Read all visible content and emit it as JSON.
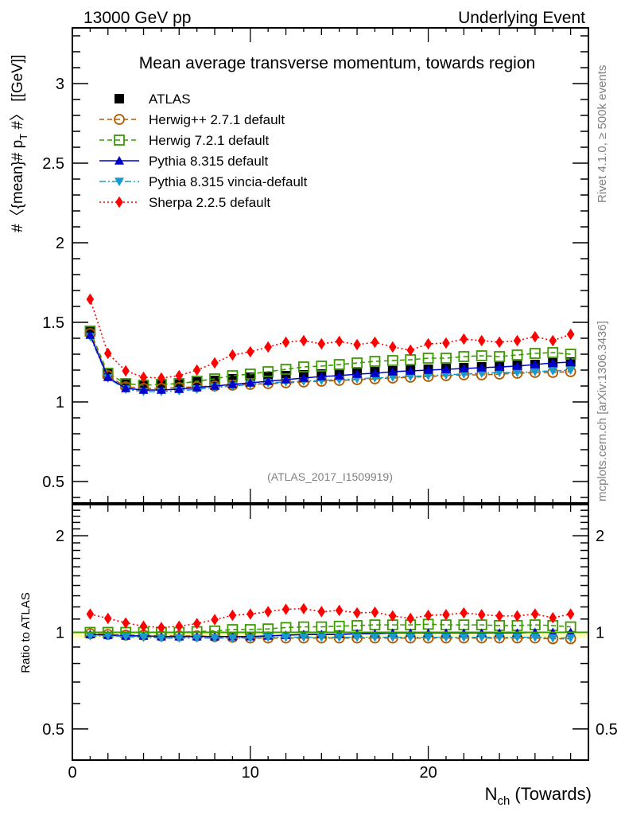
{
  "header": {
    "left": "13000 GeV pp",
    "right": "Underlying Event"
  },
  "side_labels": {
    "rivet": "Rivet 4.1.0, ≥ 500k events",
    "mcplots": "mcplots.cern.ch [arXiv:1306.3436]"
  },
  "chart_data": [
    {
      "type": "line",
      "panel": "main",
      "title": "Mean average transverse momentum, towards region",
      "analysis_label": "(ATLAS_2017_I1509919)",
      "xlabel_main": "N",
      "xlabel_sub": "ch",
      "xlabel_rest": " (Towards)",
      "ylabel": "#〈{mean}# p",
      "ylabel_sub": "T",
      "ylabel_rest": " #〉 [[GeV]]",
      "xlim": [
        0,
        29
      ],
      "ylim": [
        0.365,
        3.35
      ],
      "yticks": [
        0.5,
        1,
        1.5,
        2,
        2.5,
        3
      ],
      "ytick_labels": [
        "0.5",
        "1",
        "1.5",
        "2",
        "2.5",
        "3"
      ],
      "xticks": [
        0,
        10,
        20
      ],
      "xtick_labels": [
        "0",
        "10",
        "20"
      ],
      "legend_position": "top-left",
      "x": [
        1,
        2,
        3,
        4,
        5,
        6,
        7,
        8,
        9,
        10,
        11,
        12,
        13,
        14,
        15,
        16,
        17,
        18,
        19,
        20,
        21,
        22,
        23,
        24,
        25,
        26,
        27,
        28
      ],
      "series": [
        {
          "name": "ATLAS",
          "color": "#000000",
          "marker": "square-filled",
          "line": "none",
          "values": [
            1.445,
            1.18,
            1.115,
            1.105,
            1.11,
            1.115,
            1.125,
            1.135,
            1.145,
            1.155,
            1.16,
            1.165,
            1.17,
            1.175,
            1.18,
            1.185,
            1.19,
            1.195,
            1.2,
            1.205,
            1.21,
            1.215,
            1.22,
            1.225,
            1.23,
            1.235,
            1.245,
            1.25
          ]
        },
        {
          "name": "Herwig++ 2.7.1 default",
          "color": "#b35900",
          "marker": "circle-open",
          "line": "dashed",
          "values": [
            1.43,
            1.165,
            1.095,
            1.085,
            1.085,
            1.09,
            1.095,
            1.1,
            1.105,
            1.11,
            1.115,
            1.12,
            1.125,
            1.13,
            1.135,
            1.14,
            1.145,
            1.15,
            1.155,
            1.16,
            1.165,
            1.17,
            1.17,
            1.175,
            1.18,
            1.185,
            1.185,
            1.19
          ]
        },
        {
          "name": "Herwig 7.2.1 default",
          "color": "#3a9a00",
          "marker": "square-open",
          "line": "dashed",
          "values": [
            1.445,
            1.18,
            1.115,
            1.105,
            1.11,
            1.115,
            1.13,
            1.145,
            1.165,
            1.175,
            1.19,
            1.205,
            1.22,
            1.225,
            1.235,
            1.245,
            1.255,
            1.26,
            1.265,
            1.275,
            1.275,
            1.285,
            1.29,
            1.285,
            1.295,
            1.305,
            1.31,
            1.3
          ]
        },
        {
          "name": "Pythia 8.315 default",
          "color": "#0000cc",
          "marker": "triangle-up",
          "line": "solid",
          "values": [
            1.42,
            1.155,
            1.085,
            1.075,
            1.075,
            1.08,
            1.09,
            1.1,
            1.11,
            1.12,
            1.13,
            1.14,
            1.15,
            1.16,
            1.165,
            1.175,
            1.18,
            1.19,
            1.195,
            1.2,
            1.205,
            1.21,
            1.215,
            1.22,
            1.225,
            1.235,
            1.245,
            1.25
          ]
        },
        {
          "name": "Pythia 8.315 vincia-default",
          "color": "#1a9acc",
          "marker": "triangle-down",
          "line": "dash-dot",
          "values": [
            1.41,
            1.15,
            1.08,
            1.065,
            1.065,
            1.07,
            1.08,
            1.09,
            1.1,
            1.11,
            1.12,
            1.125,
            1.13,
            1.135,
            1.14,
            1.145,
            1.15,
            1.155,
            1.16,
            1.165,
            1.17,
            1.175,
            1.18,
            1.185,
            1.185,
            1.19,
            1.195,
            1.2
          ]
        },
        {
          "name": "Sherpa 2.2.5 default",
          "color": "#ff0000",
          "marker": "diamond-filled",
          "line": "dotted",
          "values": [
            1.645,
            1.305,
            1.195,
            1.155,
            1.15,
            1.165,
            1.2,
            1.245,
            1.295,
            1.315,
            1.345,
            1.375,
            1.385,
            1.365,
            1.38,
            1.36,
            1.375,
            1.345,
            1.325,
            1.365,
            1.37,
            1.395,
            1.385,
            1.375,
            1.385,
            1.41,
            1.385,
            1.425
          ]
        }
      ]
    },
    {
      "type": "line",
      "panel": "ratio",
      "ylabel": "Ratio to ATLAS",
      "yscale": "log",
      "ylim": [
        0.4,
        2.5
      ],
      "yticks": [
        0.5,
        1,
        2
      ],
      "ytick_labels": [
        "0.5",
        "1",
        "2"
      ],
      "xlim": [
        0,
        29
      ],
      "x": [
        1,
        2,
        3,
        4,
        5,
        6,
        7,
        8,
        9,
        10,
        11,
        12,
        13,
        14,
        15,
        16,
        17,
        18,
        19,
        20,
        21,
        22,
        23,
        24,
        25,
        26,
        27,
        28
      ],
      "reference_line": 1,
      "series": [
        {
          "name": "Herwig++ 2.7.1 default",
          "values": [
            0.99,
            0.985,
            0.98,
            0.98,
            0.975,
            0.975,
            0.975,
            0.97,
            0.965,
            0.96,
            0.96,
            0.96,
            0.96,
            0.96,
            0.96,
            0.96,
            0.96,
            0.96,
            0.96,
            0.96,
            0.96,
            0.96,
            0.96,
            0.96,
            0.96,
            0.96,
            0.955,
            0.955
          ]
        },
        {
          "name": "Herwig 7.2.1 default",
          "values": [
            1.0,
            1.0,
            1.0,
            1.0,
            1.0,
            1.0,
            1.005,
            1.01,
            1.02,
            1.02,
            1.025,
            1.035,
            1.04,
            1.04,
            1.045,
            1.05,
            1.055,
            1.055,
            1.055,
            1.06,
            1.055,
            1.055,
            1.055,
            1.05,
            1.05,
            1.055,
            1.05,
            1.04
          ]
        },
        {
          "name": "Pythia 8.315 default",
          "values": [
            0.985,
            0.98,
            0.975,
            0.975,
            0.97,
            0.97,
            0.97,
            0.97,
            0.97,
            0.97,
            0.975,
            0.98,
            0.985,
            0.985,
            0.985,
            0.99,
            0.99,
            0.995,
            0.995,
            0.995,
            0.995,
            0.995,
            0.995,
            0.995,
            0.995,
            1.0,
            1.0,
            1.0
          ]
        },
        {
          "name": "Pythia 8.315 vincia-default",
          "values": [
            0.975,
            0.975,
            0.97,
            0.965,
            0.96,
            0.96,
            0.96,
            0.96,
            0.96,
            0.96,
            0.965,
            0.965,
            0.965,
            0.965,
            0.965,
            0.965,
            0.965,
            0.965,
            0.965,
            0.965,
            0.965,
            0.965,
            0.965,
            0.965,
            0.965,
            0.965,
            0.96,
            0.96
          ]
        },
        {
          "name": "Sherpa 2.2.5 default",
          "values": [
            1.14,
            1.105,
            1.07,
            1.045,
            1.035,
            1.045,
            1.065,
            1.095,
            1.13,
            1.14,
            1.16,
            1.18,
            1.185,
            1.16,
            1.17,
            1.15,
            1.155,
            1.125,
            1.105,
            1.13,
            1.135,
            1.15,
            1.135,
            1.125,
            1.125,
            1.14,
            1.11,
            1.14
          ]
        }
      ]
    }
  ]
}
